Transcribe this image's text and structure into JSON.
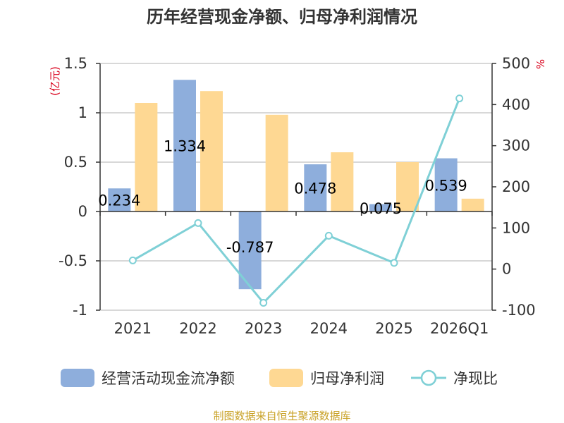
{
  "chart_data": {
    "type": "bar+line",
    "title": "历年经营现金净额、归母净利润情况",
    "categories": [
      "2021",
      "2022",
      "2023",
      "2024",
      "2025",
      "2026Q1"
    ],
    "series": [
      {
        "name": "经营活动现金流净额",
        "kind": "bar",
        "axis": "left",
        "color": "#8eaedc",
        "values": [
          0.234,
          1.334,
          -0.787,
          0.478,
          0.075,
          0.539
        ],
        "labels": [
          "0.234",
          "1.334",
          "-0.787",
          "0.478",
          "0.075",
          "0.539"
        ]
      },
      {
        "name": "归母净利润",
        "kind": "bar",
        "axis": "left",
        "color": "#fed893",
        "values": [
          1.1,
          1.22,
          0.98,
          0.6,
          0.5,
          0.13
        ]
      },
      {
        "name": "净现比",
        "kind": "line",
        "axis": "right",
        "color": "#7fd0d6",
        "values": [
          21,
          112,
          -82,
          81,
          15,
          415
        ]
      }
    ],
    "y_left": {
      "unit": "(亿元)",
      "min": -1,
      "max": 1.5,
      "ticks": [
        1.5,
        1,
        0.5,
        0,
        -0.5,
        -1
      ],
      "tick_labels": [
        "1.5",
        "1",
        "0.5",
        "0",
        "-0.5",
        "-1"
      ]
    },
    "y_right": {
      "unit": "%",
      "min": -100,
      "max": 500,
      "ticks": [
        500,
        400,
        300,
        200,
        100,
        0,
        -100
      ],
      "tick_labels": [
        "500",
        "400",
        "300",
        "200",
        "100",
        "0",
        "-100"
      ]
    },
    "legend_position": "bottom",
    "source": "制图数据来自恒生聚源数据库"
  }
}
